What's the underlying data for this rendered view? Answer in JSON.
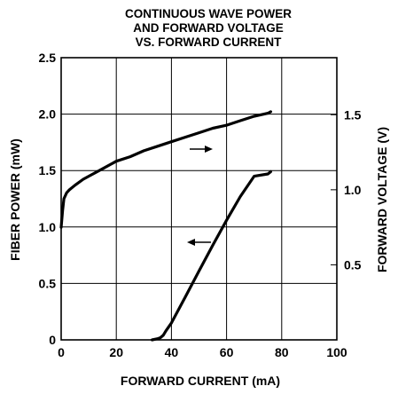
{
  "chart_data": {
    "type": "line",
    "title_lines": [
      "CONTINUOUS WAVE POWER",
      "AND FORWARD VOLTAGE",
      "VS. FORWARD CURRENT"
    ],
    "xlabel": "FORWARD CURRENT (mA)",
    "ylabel_left": "FIBER POWER (mW)",
    "ylabel_right": "FORWARD VOLTAGE (V)",
    "xlim": [
      0,
      100
    ],
    "ylim_left": [
      0,
      2.5
    ],
    "ylim_right": [
      0,
      1.88
    ],
    "x_ticks": [
      "0",
      "20",
      "40",
      "60",
      "80",
      "100"
    ],
    "x_tick_values": [
      0,
      20,
      40,
      60,
      80,
      100
    ],
    "y_left_ticks": [
      "0",
      "0.5",
      "1.0",
      "1.5",
      "2.0",
      "2.5"
    ],
    "y_left_tick_values": [
      0,
      0.5,
      1.0,
      1.5,
      2.0,
      2.5
    ],
    "y_right_ticks": [
      "0.5",
      "1.0",
      "1.5"
    ],
    "y_right_tick_values": [
      0.5,
      1.0,
      1.5
    ],
    "grid": true,
    "series": [
      {
        "axis": "right",
        "x": [
          0,
          0.5,
          1,
          2,
          3,
          5,
          8,
          10,
          15,
          20,
          25,
          30,
          35,
          40,
          45,
          50,
          55,
          60,
          65,
          70,
          75,
          76
        ],
        "y": [
          0.75,
          0.86,
          0.94,
          0.98,
          1.0,
          1.03,
          1.07,
          1.09,
          1.14,
          1.19,
          1.22,
          1.26,
          1.29,
          1.32,
          1.35,
          1.38,
          1.41,
          1.43,
          1.46,
          1.49,
          1.51,
          1.52
        ]
      },
      {
        "axis": "left",
        "x": [
          33,
          35,
          36,
          37,
          38,
          40,
          45,
          50,
          55,
          60,
          65,
          70,
          75,
          76
        ],
        "y": [
          0.0,
          0.01,
          0.02,
          0.04,
          0.08,
          0.15,
          0.38,
          0.61,
          0.84,
          1.06,
          1.27,
          1.45,
          1.47,
          1.49
        ]
      }
    ],
    "annotations": [
      {
        "type": "arrow",
        "direction": "right",
        "points_to": "right-axis"
      },
      {
        "type": "arrow",
        "direction": "left",
        "points_to": "left-axis"
      }
    ]
  }
}
